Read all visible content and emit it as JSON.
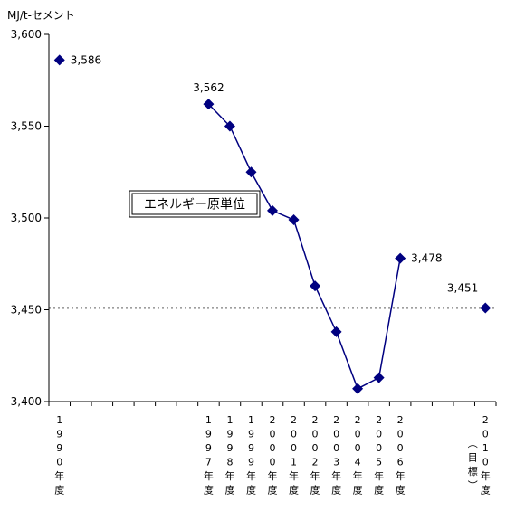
{
  "chart_data": {
    "type": "line",
    "ylabel": "MJ/t-セメント",
    "ylim": [
      3400,
      3600
    ],
    "yticks": [
      3400,
      3450,
      3500,
      3550,
      3600
    ],
    "grid": false,
    "categories": [
      "1990年度",
      "",
      "",
      "",
      "",
      "",
      "",
      "1997年度",
      "1998年度",
      "1999年度",
      "2000年度",
      "2001年度",
      "2002年度",
      "2003年度",
      "2004年度",
      "2005年度",
      "2006年度",
      "",
      "",
      "",
      "2010年度（目標）"
    ],
    "series": [
      {
        "name": "エネルギー原単位",
        "color": "#000080",
        "points": [
          {
            "x": "1990年度",
            "y": 3586
          },
          {
            "x": "1997年度",
            "y": 3562
          },
          {
            "x": "1998年度",
            "y": 3550
          },
          {
            "x": "1999年度",
            "y": 3525
          },
          {
            "x": "2000年度",
            "y": 3504
          },
          {
            "x": "2001年度",
            "y": 3499
          },
          {
            "x": "2002年度",
            "y": 3463
          },
          {
            "x": "2003年度",
            "y": 3438
          },
          {
            "x": "2004年度",
            "y": 3407
          },
          {
            "x": "2005年度",
            "y": 3413
          },
          {
            "x": "2006年度",
            "y": 3478
          },
          {
            "x": "2010年度（目標）",
            "y": 3451
          }
        ]
      }
    ],
    "data_labels": [
      {
        "x": "1990年度",
        "text": "3,586"
      },
      {
        "x": "1997年度",
        "text": "3,562"
      },
      {
        "x": "2006年度",
        "text": "3,478"
      },
      {
        "x": "2010年度（目標）",
        "text": "3,451"
      }
    ],
    "target_line": {
      "y": 3451,
      "style": "dotted"
    },
    "legend": {
      "label": "エネルギー原単位",
      "placement": "center-left"
    },
    "tick_labels": [
      "3,400",
      "3,450",
      "3,500",
      "3,550",
      "3,600"
    ],
    "category_labels": [
      {
        "x": "1990年度",
        "chars": [
          "1",
          "9",
          "9",
          "0",
          "年",
          "度"
        ]
      },
      {
        "x": "1997年度",
        "chars": [
          "1",
          "9",
          "9",
          "7",
          "年",
          "度"
        ]
      },
      {
        "x": "1998年度",
        "chars": [
          "1",
          "9",
          "9",
          "8",
          "年",
          "度"
        ]
      },
      {
        "x": "1999年度",
        "chars": [
          "1",
          "9",
          "9",
          "9",
          "年",
          "度"
        ]
      },
      {
        "x": "2000年度",
        "chars": [
          "2",
          "0",
          "0",
          "0",
          "年",
          "度"
        ]
      },
      {
        "x": "2001年度",
        "chars": [
          "2",
          "0",
          "0",
          "1",
          "年",
          "度"
        ]
      },
      {
        "x": "2002年度",
        "chars": [
          "2",
          "0",
          "0",
          "2",
          "年",
          "度"
        ]
      },
      {
        "x": "2003年度",
        "chars": [
          "2",
          "0",
          "0",
          "3",
          "年",
          "度"
        ]
      },
      {
        "x": "2004年度",
        "chars": [
          "2",
          "0",
          "0",
          "4",
          "年",
          "度"
        ]
      },
      {
        "x": "2005年度",
        "chars": [
          "2",
          "0",
          "0",
          "5",
          "年",
          "度"
        ]
      },
      {
        "x": "2006年度",
        "chars": [
          "2",
          "0",
          "0",
          "6",
          "年",
          "度"
        ]
      },
      {
        "x": "2010年度（目標）",
        "chars": [
          "2",
          "0",
          "1",
          "0",
          "年",
          "度"
        ],
        "paren": [
          "︵",
          "目",
          "標",
          "︶"
        ]
      }
    ]
  }
}
